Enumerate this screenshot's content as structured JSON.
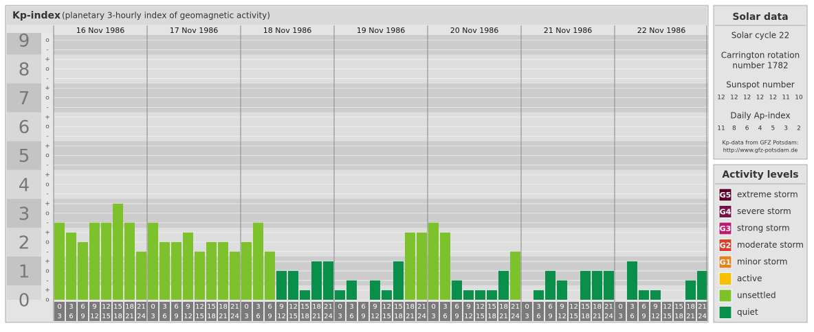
{
  "chart_data": {
    "type": "bar",
    "title": "Kp-index",
    "subtitle": "(planetary 3-hourly index of geomagnetic activity)",
    "ylim": [
      0,
      9.25
    ],
    "yticks": [
      0,
      1,
      2,
      3,
      4,
      5,
      6,
      7,
      8,
      9
    ],
    "minor_ticks": [
      {
        "value": 9,
        "label": "o"
      },
      {
        "value": 8.67,
        "label": "-"
      },
      {
        "value": 8.33,
        "label": "+"
      },
      {
        "value": 8,
        "label": "o"
      },
      {
        "value": 7.67,
        "label": "-"
      },
      {
        "value": 7.33,
        "label": "+"
      },
      {
        "value": 7,
        "label": "o"
      },
      {
        "value": 6.67,
        "label": "-"
      },
      {
        "value": 6.33,
        "label": "+"
      },
      {
        "value": 6,
        "label": "o"
      },
      {
        "value": 5.67,
        "label": "-"
      },
      {
        "value": 5.33,
        "label": "+"
      },
      {
        "value": 5,
        "label": "o"
      },
      {
        "value": 4.67,
        "label": "-"
      },
      {
        "value": 4.33,
        "label": "+"
      },
      {
        "value": 4,
        "label": "o"
      },
      {
        "value": 3.67,
        "label": "-"
      },
      {
        "value": 3.33,
        "label": "+"
      },
      {
        "value": 3,
        "label": "o"
      },
      {
        "value": 2.67,
        "label": "-"
      },
      {
        "value": 2.33,
        "label": "+"
      },
      {
        "value": 2,
        "label": "o"
      },
      {
        "value": 1.67,
        "label": "-"
      },
      {
        "value": 1.33,
        "label": "+"
      },
      {
        "value": 1,
        "label": "o"
      },
      {
        "value": 0.67,
        "label": "-"
      },
      {
        "value": 0.33,
        "label": "+"
      },
      {
        "value": 0,
        "label": "o"
      }
    ],
    "hours": [
      [
        "0",
        "3"
      ],
      [
        "3",
        "6"
      ],
      [
        "6",
        "9"
      ],
      [
        "9",
        "12"
      ],
      [
        "12",
        "15"
      ],
      [
        "15",
        "18"
      ],
      [
        "18",
        "21"
      ],
      [
        "21",
        "24"
      ]
    ],
    "days": [
      {
        "date": "16 Nov 1986",
        "values": [
          2.67,
          2.33,
          2,
          2.67,
          2.67,
          3.33,
          2.67,
          1.67
        ],
        "colors": [
          "#7dc12b",
          "#7dc12b",
          "#7dc12b",
          "#7dc12b",
          "#7dc12b",
          "#7dc12b",
          "#7dc12b",
          "#7dc12b"
        ]
      },
      {
        "date": "17 Nov 1986",
        "values": [
          2.67,
          2,
          2,
          2.33,
          1.67,
          2,
          2,
          1.67
        ],
        "colors": [
          "#7dc12b",
          "#7dc12b",
          "#7dc12b",
          "#7dc12b",
          "#7dc12b",
          "#7dc12b",
          "#7dc12b",
          "#7dc12b"
        ]
      },
      {
        "date": "18 Nov 1986",
        "values": [
          2,
          2.67,
          1.67,
          1,
          1,
          0.33,
          1.33,
          1.33
        ],
        "colors": [
          "#7dc12b",
          "#7dc12b",
          "#7dc12b",
          "#0a8f4a",
          "#0a8f4a",
          "#0a8f4a",
          "#0a8f4a",
          "#0a8f4a"
        ]
      },
      {
        "date": "19 Nov 1986",
        "values": [
          0.33,
          0.67,
          0,
          0.67,
          0.33,
          1.33,
          2.33,
          2.33
        ],
        "colors": [
          "#0a8f4a",
          "#0a8f4a",
          "#0a8f4a",
          "#0a8f4a",
          "#0a8f4a",
          "#0a8f4a",
          "#7dc12b",
          "#7dc12b"
        ]
      },
      {
        "date": "20 Nov 1986",
        "values": [
          2.67,
          2.33,
          0.67,
          0.33,
          0.33,
          0.33,
          1,
          1.67
        ],
        "colors": [
          "#7dc12b",
          "#7dc12b",
          "#0a8f4a",
          "#0a8f4a",
          "#0a8f4a",
          "#0a8f4a",
          "#0a8f4a",
          "#7dc12b"
        ]
      },
      {
        "date": "21 Nov 1986",
        "values": [
          0,
          0.33,
          1,
          0.67,
          0,
          1,
          1,
          1
        ],
        "colors": [
          "#0a8f4a",
          "#0a8f4a",
          "#0a8f4a",
          "#0a8f4a",
          "#0a8f4a",
          "#0a8f4a",
          "#0a8f4a",
          "#0a8f4a"
        ]
      },
      {
        "date": "22 Nov 1986",
        "values": [
          0,
          1.33,
          0.33,
          0.33,
          0,
          0,
          0.67,
          1
        ],
        "colors": [
          "#0a8f4a",
          "#0a8f4a",
          "#0a8f4a",
          "#0a8f4a",
          "#0a8f4a",
          "#0a8f4a",
          "#0a8f4a",
          "#0a8f4a"
        ]
      }
    ]
  },
  "solar": {
    "title": "Solar data",
    "cycle": "Solar cycle 22",
    "carrington": [
      "Carrington rotation",
      "number 1782"
    ],
    "sunspot_title": "Sunspot number",
    "sunspot": [
      12,
      12,
      12,
      12,
      12,
      11,
      10
    ],
    "ap_title": "Daily Ap-index",
    "ap": [
      11,
      8,
      6,
      4,
      5,
      3,
      2
    ],
    "source": [
      "Kp-data from GFZ Potsdam:",
      "http://www.gfz-potsdam.de"
    ]
  },
  "activity": {
    "title": "Activity levels",
    "levels": [
      {
        "badge": "G5",
        "name": "extreme storm",
        "color": "#5a0028"
      },
      {
        "badge": "G4",
        "name": "severe storm",
        "color": "#7a1048"
      },
      {
        "badge": "G3",
        "name": "strong storm",
        "color": "#c0186a"
      },
      {
        "badge": "G2",
        "name": "moderate storm",
        "color": "#d8402a"
      },
      {
        "badge": "G1",
        "name": "minor storm",
        "color": "#e8801e"
      },
      {
        "badge": null,
        "name": "active",
        "color": "#f8c000"
      },
      {
        "badge": null,
        "name": "unsettled",
        "color": "#7dc12b"
      },
      {
        "badge": null,
        "name": "quiet",
        "color": "#0a8f4a"
      }
    ]
  }
}
